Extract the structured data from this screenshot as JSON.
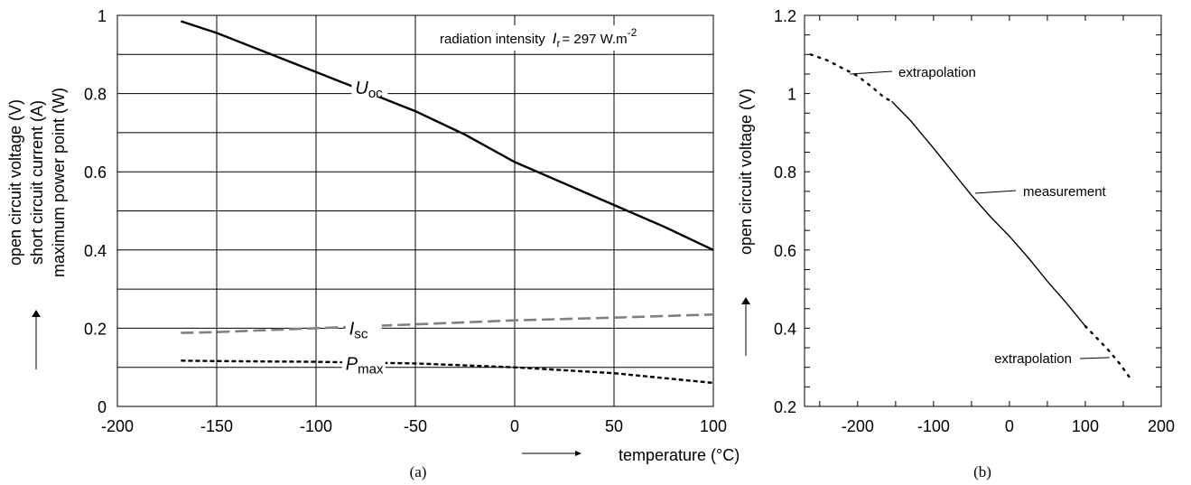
{
  "chart_data": [
    {
      "type": "line",
      "caption": "(a)",
      "xlabel": "temperature  (°C)",
      "ylabel_lines": [
        "open circuit voltage  (V)",
        "short circuit current  (A)",
        "maximum power point  (W)"
      ],
      "xlim": [
        -200,
        100
      ],
      "ylim": [
        0,
        1
      ],
      "xticks": [
        "-200",
        "-150",
        "-100",
        "-50",
        "0",
        "50",
        "100"
      ],
      "yticks": [
        "0",
        "0.2",
        "0.4",
        "0.6",
        "0.8",
        "1"
      ],
      "grid": true,
      "annotation": {
        "text": "radiation intensity",
        "symbol": "I",
        "subscript": "r",
        "value": "= 297 W.m",
        "superscript": "-2"
      },
      "series": [
        {
          "name": "U",
          "subscript": "oc",
          "color": "#000000",
          "style": "solid",
          "label_at": [
            -73,
            0.815
          ],
          "x": [
            -168,
            -150,
            -125,
            -100,
            -75,
            -50,
            -25,
            0,
            25,
            50,
            75,
            100
          ],
          "y": [
            0.985,
            0.955,
            0.905,
            0.855,
            0.805,
            0.755,
            0.695,
            0.625,
            0.57,
            0.515,
            0.46,
            0.4
          ]
        },
        {
          "name": "I",
          "subscript": "sc",
          "color": "#808080",
          "style": "dashed",
          "label_at": [
            -76,
            0.2
          ],
          "x": [
            -168,
            -150,
            -100,
            -50,
            0,
            50,
            100
          ],
          "y": [
            0.188,
            0.19,
            0.2,
            0.21,
            0.22,
            0.227,
            0.235
          ]
        },
        {
          "name": "P",
          "subscript": "max",
          "color": "#000000",
          "style": "dotted",
          "label_at": [
            -76,
            0.11
          ],
          "x": [
            -168,
            -150,
            -100,
            -50,
            0,
            50,
            100
          ],
          "y": [
            0.117,
            0.116,
            0.114,
            0.11,
            0.1,
            0.085,
            0.06
          ]
        }
      ]
    },
    {
      "type": "line",
      "caption": "(b)",
      "ylabel": "open circuit voltage  (V)",
      "xlim": [
        -270,
        200
      ],
      "ylim": [
        0.2,
        1.2
      ],
      "xticks": [
        "-200",
        "-100",
        "0",
        "100",
        "200"
      ],
      "yticks": [
        "0.2",
        "0.4",
        "0.6",
        "0.8",
        "1",
        "1.2"
      ],
      "grid": false,
      "series": [
        {
          "name": "extrapolation",
          "style": "dotted",
          "color": "#000000",
          "x": [
            -262,
            -240,
            -220,
            -200,
            -180,
            -165,
            -155
          ],
          "y": [
            1.1,
            1.085,
            1.065,
            1.045,
            1.015,
            0.99,
            0.98
          ]
        },
        {
          "name": "measurement",
          "style": "solid",
          "color": "#000000",
          "x": [
            -155,
            -130,
            -100,
            -75,
            -50,
            -25,
            0,
            25,
            50,
            75,
            100
          ],
          "y": [
            0.98,
            0.93,
            0.86,
            0.8,
            0.74,
            0.685,
            0.635,
            0.58,
            0.52,
            0.465,
            0.405
          ]
        },
        {
          "name": "extrapolation",
          "style": "dotted",
          "color": "#000000",
          "x": [
            100,
            115,
            130,
            145,
            160
          ],
          "y": [
            0.405,
            0.375,
            0.345,
            0.31,
            0.27
          ]
        }
      ],
      "callouts": [
        {
          "text": "extrapolation",
          "at": [
            -210,
            1.05
          ]
        },
        {
          "text": "measurement",
          "at": [
            -45,
            0.745
          ]
        },
        {
          "text": "extrapolation",
          "at": [
            132,
            0.325
          ]
        }
      ]
    }
  ]
}
